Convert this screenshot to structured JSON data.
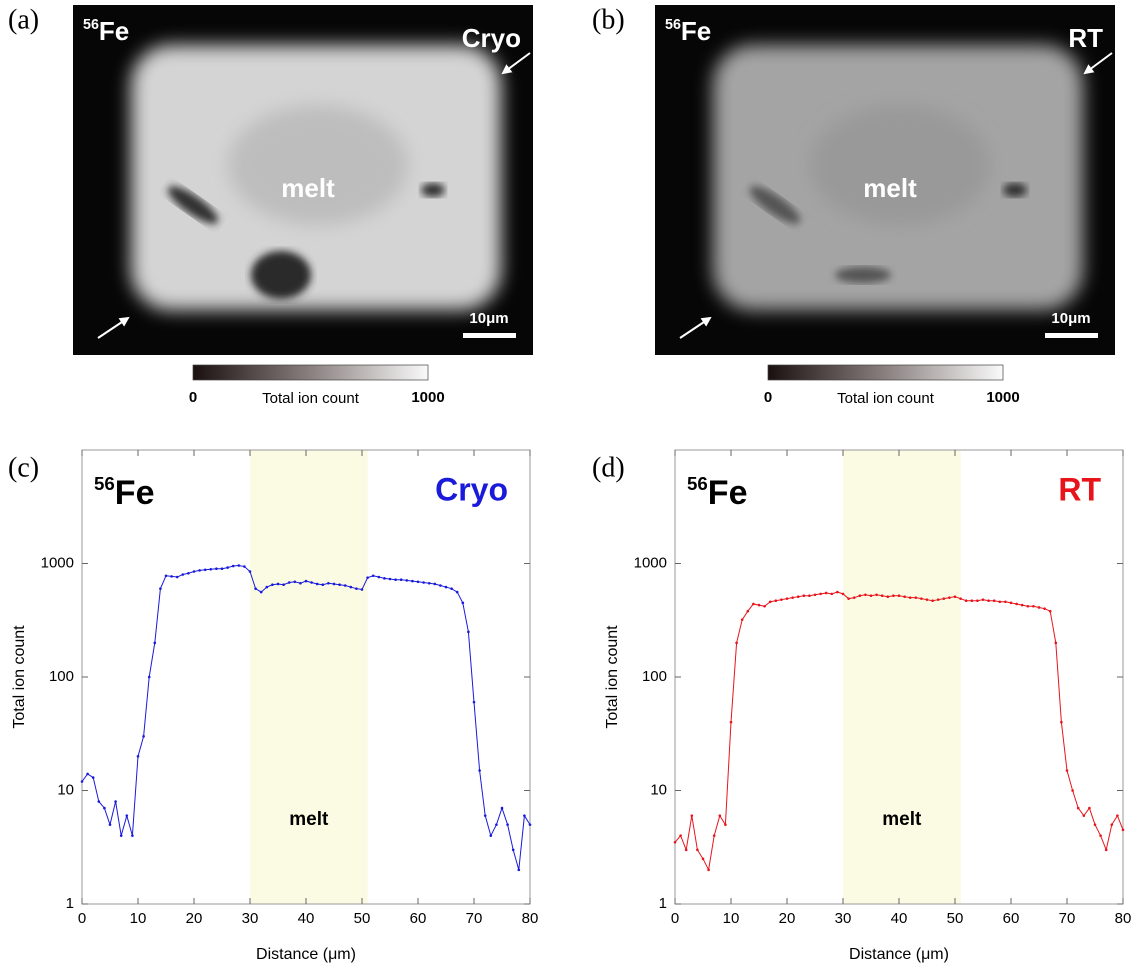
{
  "figure": {
    "images": [
      {
        "panel_label": "(a)",
        "isotope_mass": "56",
        "element": "Fe",
        "condition": "Cryo",
        "region": "melt",
        "scale_bar": "10μm",
        "colorbar": {
          "min": "0",
          "max": "1000",
          "label": "Total ion count"
        }
      },
      {
        "panel_label": "(b)",
        "isotope_mass": "56",
        "element": "Fe",
        "condition": "RT",
        "region": "melt",
        "scale_bar": "10μm",
        "colorbar": {
          "min": "0",
          "max": "1000",
          "label": "Total ion count"
        }
      }
    ]
  },
  "chart_data": [
    {
      "type": "line",
      "panel_label": "(c)",
      "isotope_mass": "56",
      "element": "Fe",
      "condition": "Cryo",
      "shaded_region": {
        "label": "melt",
        "span": [
          30,
          51
        ],
        "color": "#fbfbe3"
      },
      "x_label": "Distance (μm)",
      "y_label": "Total ion count",
      "log_y": true,
      "xlim": [
        0,
        80
      ],
      "xticks": [
        0,
        10,
        20,
        30,
        40,
        50,
        60,
        70,
        80
      ],
      "ylim": [
        1,
        10000
      ],
      "yticks": [
        1,
        10,
        100,
        1000
      ],
      "x": [
        0,
        1,
        2,
        3,
        4,
        5,
        6,
        7,
        8,
        9,
        10,
        11,
        12,
        13,
        14,
        15,
        16,
        17,
        18,
        19,
        20,
        21,
        22,
        23,
        24,
        25,
        26,
        27,
        28,
        29,
        30,
        31,
        32,
        33,
        34,
        35,
        36,
        37,
        38,
        39,
        40,
        41,
        42,
        43,
        44,
        45,
        46,
        47,
        48,
        49,
        50,
        51,
        52,
        53,
        54,
        55,
        56,
        57,
        58,
        59,
        60,
        61,
        62,
        63,
        64,
        65,
        66,
        67,
        68,
        69,
        70,
        71,
        72,
        73,
        74,
        75,
        76,
        77,
        78,
        79,
        80
      ],
      "series": [
        {
          "name": "Cryo",
          "color": "#1a1adb",
          "values": [
            12,
            14,
            13,
            8,
            7,
            5,
            8,
            4,
            6,
            4,
            20,
            30,
            100,
            200,
            600,
            780,
            770,
            760,
            800,
            820,
            850,
            870,
            880,
            890,
            900,
            900,
            920,
            950,
            960,
            940,
            850,
            600,
            560,
            620,
            650,
            660,
            650,
            680,
            690,
            670,
            700,
            680,
            660,
            650,
            670,
            660,
            650,
            640,
            620,
            600,
            590,
            750,
            780,
            760,
            740,
            730,
            720,
            720,
            710,
            700,
            690,
            680,
            670,
            660,
            640,
            620,
            600,
            560,
            450,
            250,
            60,
            15,
            6,
            4,
            5,
            7,
            5,
            3,
            2,
            6,
            5
          ]
        }
      ]
    },
    {
      "type": "line",
      "panel_label": "(d)",
      "isotope_mass": "56",
      "element": "Fe",
      "condition": "RT",
      "shaded_region": {
        "label": "melt",
        "span": [
          30,
          51
        ],
        "color": "#fbfbe3"
      },
      "x_label": "Distance (μm)",
      "y_label": "Total ion count",
      "log_y": true,
      "xlim": [
        0,
        80
      ],
      "xticks": [
        0,
        10,
        20,
        30,
        40,
        50,
        60,
        70,
        80
      ],
      "ylim": [
        1,
        10000
      ],
      "yticks": [
        1,
        10,
        100,
        1000
      ],
      "x": [
        0,
        1,
        2,
        3,
        4,
        5,
        6,
        7,
        8,
        9,
        10,
        11,
        12,
        13,
        14,
        15,
        16,
        17,
        18,
        19,
        20,
        21,
        22,
        23,
        24,
        25,
        26,
        27,
        28,
        29,
        30,
        31,
        32,
        33,
        34,
        35,
        36,
        37,
        38,
        39,
        40,
        41,
        42,
        43,
        44,
        45,
        46,
        47,
        48,
        49,
        50,
        51,
        52,
        53,
        54,
        55,
        56,
        57,
        58,
        59,
        60,
        61,
        62,
        63,
        64,
        65,
        66,
        67,
        68,
        69,
        70,
        71,
        72,
        73,
        74,
        75,
        76,
        77,
        78,
        79,
        80
      ],
      "series": [
        {
          "name": "RT",
          "color": "#e8141c",
          "values": [
            3.5,
            4,
            3,
            6,
            3,
            2.5,
            2,
            4,
            6,
            5,
            40,
            200,
            320,
            380,
            440,
            430,
            420,
            460,
            470,
            480,
            490,
            500,
            510,
            520,
            520,
            530,
            540,
            550,
            540,
            560,
            540,
            490,
            500,
            520,
            530,
            520,
            530,
            520,
            510,
            520,
            520,
            510,
            500,
            500,
            490,
            480,
            470,
            480,
            490,
            500,
            510,
            490,
            470,
            470,
            470,
            480,
            470,
            470,
            460,
            460,
            450,
            440,
            430,
            420,
            420,
            410,
            400,
            380,
            200,
            40,
            15,
            10,
            7,
            6,
            7,
            5,
            4,
            3,
            5,
            6,
            4.5
          ]
        }
      ]
    }
  ]
}
